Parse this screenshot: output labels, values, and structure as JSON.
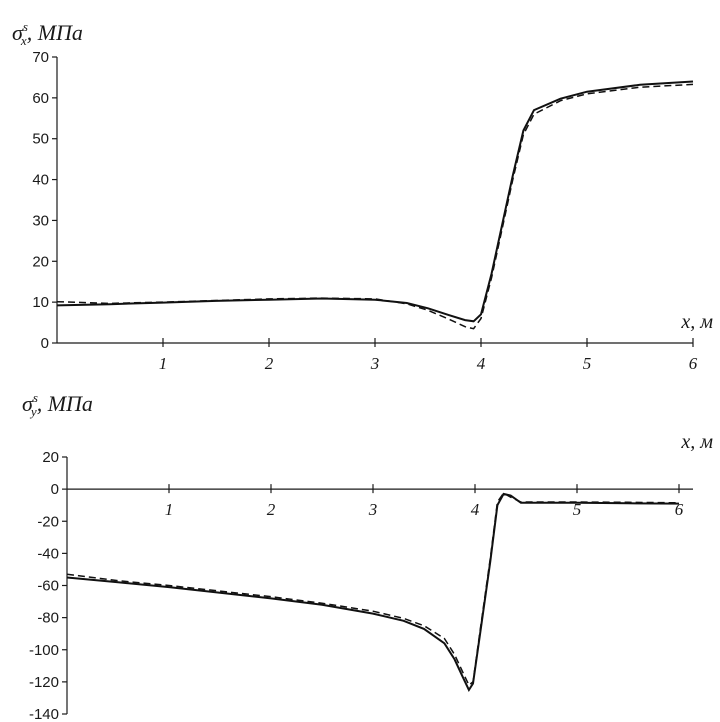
{
  "chart_data": [
    {
      "type": "line",
      "ylabel": {
        "symbol": "σ",
        "sup": "s",
        "sub": "x",
        "unit": "МПа"
      },
      "xlabel": "x, м",
      "xlim": [
        0,
        6
      ],
      "ylim": [
        0,
        70
      ],
      "x_ticks": [
        1,
        2,
        3,
        4,
        5,
        6
      ],
      "y_ticks": [
        0,
        10,
        20,
        30,
        40,
        50,
        60,
        70
      ],
      "grid": false,
      "legend": "none",
      "series": [
        {
          "style": "solid",
          "points": [
            [
              0,
              9.2
            ],
            [
              0.5,
              9.5
            ],
            [
              1,
              9.9
            ],
            [
              1.5,
              10.3
            ],
            [
              2,
              10.6
            ],
            [
              2.5,
              10.9
            ],
            [
              3,
              10.6
            ],
            [
              3.3,
              9.8
            ],
            [
              3.5,
              8.5
            ],
            [
              3.7,
              6.8
            ],
            [
              3.85,
              5.6
            ],
            [
              3.93,
              5.3
            ],
            [
              4.0,
              7
            ],
            [
              4.1,
              17
            ],
            [
              4.2,
              29
            ],
            [
              4.3,
              41
            ],
            [
              4.4,
              52
            ],
            [
              4.5,
              57
            ],
            [
              4.75,
              59.8
            ],
            [
              5,
              61.5
            ],
            [
              5.5,
              63.2
            ],
            [
              6,
              64
            ]
          ]
        },
        {
          "style": "dashed",
          "points": [
            [
              0,
              10.1
            ],
            [
              0.5,
              9.7
            ],
            [
              1,
              10.0
            ],
            [
              1.5,
              10.4
            ],
            [
              2,
              10.8
            ],
            [
              2.5,
              11.0
            ],
            [
              3,
              10.8
            ],
            [
              3.3,
              9.6
            ],
            [
              3.5,
              8.0
            ],
            [
              3.7,
              5.8
            ],
            [
              3.85,
              4.0
            ],
            [
              3.93,
              3.5
            ],
            [
              4.0,
              6
            ],
            [
              4.1,
              16
            ],
            [
              4.2,
              28
            ],
            [
              4.3,
              40
            ],
            [
              4.4,
              51
            ],
            [
              4.5,
              56
            ],
            [
              4.75,
              59.3
            ],
            [
              5,
              61
            ],
            [
              5.5,
              62.6
            ],
            [
              6,
              63.3
            ]
          ]
        }
      ]
    },
    {
      "type": "line",
      "ylabel": {
        "symbol": "σ",
        "sup": "s",
        "sub": "y",
        "unit": "МПа"
      },
      "xlabel": "x, м",
      "xlim": [
        0,
        6
      ],
      "ylim": [
        -140,
        20
      ],
      "x_ticks": [
        1,
        2,
        3,
        4,
        5,
        6
      ],
      "y_ticks": [
        20,
        0,
        -20,
        -40,
        -60,
        -80,
        -100,
        -120,
        -140
      ],
      "grid": false,
      "legend": "none",
      "series": [
        {
          "style": "solid",
          "points": [
            [
              0,
              -55
            ],
            [
              0.5,
              -58
            ],
            [
              1,
              -61
            ],
            [
              1.5,
              -64.5
            ],
            [
              2,
              -68
            ],
            [
              2.5,
              -72
            ],
            [
              3,
              -77.5
            ],
            [
              3.3,
              -82
            ],
            [
              3.5,
              -87
            ],
            [
              3.7,
              -96
            ],
            [
              3.8,
              -106
            ],
            [
              3.88,
              -117
            ],
            [
              3.94,
              -125
            ],
            [
              3.98,
              -121
            ],
            [
              4.05,
              -90
            ],
            [
              4.15,
              -45
            ],
            [
              4.22,
              -10
            ],
            [
              4.28,
              -3
            ],
            [
              4.35,
              -4
            ],
            [
              4.45,
              -8.5
            ],
            [
              4.6,
              -8.5
            ],
            [
              5,
              -8.5
            ],
            [
              5.5,
              -8.8
            ],
            [
              6,
              -9
            ]
          ]
        },
        {
          "style": "dashed",
          "points": [
            [
              0,
              -53
            ],
            [
              0.5,
              -57
            ],
            [
              1,
              -60
            ],
            [
              1.5,
              -63.5
            ],
            [
              2,
              -67
            ],
            [
              2.5,
              -71
            ],
            [
              3,
              -76
            ],
            [
              3.3,
              -80.5
            ],
            [
              3.5,
              -85
            ],
            [
              3.7,
              -93
            ],
            [
              3.8,
              -103
            ],
            [
              3.88,
              -114
            ],
            [
              3.94,
              -122
            ],
            [
              3.98,
              -120
            ],
            [
              4.05,
              -88
            ],
            [
              4.15,
              -43
            ],
            [
              4.22,
              -8
            ],
            [
              4.28,
              -2.5
            ],
            [
              4.35,
              -5
            ],
            [
              4.45,
              -8
            ],
            [
              4.6,
              -8
            ],
            [
              5,
              -8
            ],
            [
              5.5,
              -8.2
            ],
            [
              6,
              -8.5
            ]
          ]
        }
      ]
    }
  ]
}
